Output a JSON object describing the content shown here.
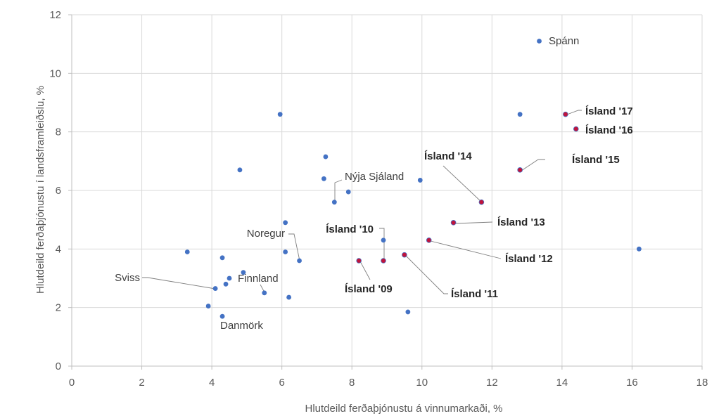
{
  "chart_data": {
    "type": "scatter",
    "xlabel": "Hlutdeild ferðaþjónustu á vinnumarkaði, %",
    "ylabel": "Hlutdeild ferðaþjónustu í landsframleiðslu, %",
    "xlim": [
      0,
      18
    ],
    "ylim": [
      0,
      12
    ],
    "xticks": [
      0,
      2,
      4,
      6,
      8,
      10,
      12,
      14,
      16,
      18
    ],
    "yticks": [
      0,
      2,
      4,
      6,
      8,
      10,
      12
    ],
    "grid": true,
    "colors": {
      "other": "#4472C4",
      "iceland": "#C0143C",
      "grid": "#D9D9D9",
      "axis": "#BFBFBF",
      "leader": "#7F7F7F"
    },
    "points": [
      {
        "x": 13.35,
        "y": 11.1,
        "label": "Spánn",
        "highlight": false
      },
      {
        "x": 5.95,
        "y": 8.6,
        "label": "",
        "highlight": false
      },
      {
        "x": 12.8,
        "y": 8.6,
        "label": "",
        "highlight": false
      },
      {
        "x": 4.8,
        "y": 6.7,
        "label": "",
        "highlight": false
      },
      {
        "x": 7.25,
        "y": 7.15,
        "label": "",
        "highlight": false
      },
      {
        "x": 7.2,
        "y": 6.4,
        "label": "",
        "highlight": false
      },
      {
        "x": 7.9,
        "y": 5.95,
        "label": "",
        "highlight": false
      },
      {
        "x": 7.5,
        "y": 5.6,
        "label": "Nýja Sjáland",
        "highlight": false
      },
      {
        "x": 9.95,
        "y": 6.35,
        "label": "",
        "highlight": false
      },
      {
        "x": 6.1,
        "y": 4.9,
        "label": "",
        "highlight": false
      },
      {
        "x": 6.1,
        "y": 3.9,
        "label": "",
        "highlight": false
      },
      {
        "x": 6.5,
        "y": 3.6,
        "label": "Noregur",
        "highlight": false
      },
      {
        "x": 3.3,
        "y": 3.9,
        "label": "",
        "highlight": false
      },
      {
        "x": 4.3,
        "y": 3.7,
        "label": "",
        "highlight": false
      },
      {
        "x": 4.9,
        "y": 3.2,
        "label": "",
        "highlight": false
      },
      {
        "x": 4.5,
        "y": 3.0,
        "label": "",
        "highlight": false
      },
      {
        "x": 4.4,
        "y": 2.8,
        "label": "",
        "highlight": false
      },
      {
        "x": 4.1,
        "y": 2.65,
        "label": "Sviss",
        "highlight": false
      },
      {
        "x": 5.5,
        "y": 2.5,
        "label": "Finnland",
        "highlight": false
      },
      {
        "x": 6.2,
        "y": 2.35,
        "label": "",
        "highlight": false
      },
      {
        "x": 3.9,
        "y": 2.05,
        "label": "",
        "highlight": false
      },
      {
        "x": 4.3,
        "y": 1.7,
        "label": "Danmörk",
        "highlight": false
      },
      {
        "x": 8.9,
        "y": 4.3,
        "label": "",
        "highlight": false
      },
      {
        "x": 9.6,
        "y": 1.85,
        "label": "",
        "highlight": false
      },
      {
        "x": 16.2,
        "y": 4.0,
        "label": "",
        "highlight": false
      },
      {
        "x": 8.2,
        "y": 3.6,
        "label": "Ísland '09",
        "highlight": true
      },
      {
        "x": 8.9,
        "y": 3.6,
        "label": "Ísland '10",
        "highlight": true
      },
      {
        "x": 9.5,
        "y": 3.8,
        "label": "Ísland '11",
        "highlight": true
      },
      {
        "x": 10.2,
        "y": 4.3,
        "label": "Ísland '12",
        "highlight": true
      },
      {
        "x": 10.9,
        "y": 4.9,
        "label": "Ísland '13",
        "highlight": true
      },
      {
        "x": 11.7,
        "y": 5.6,
        "label": "Ísland '14",
        "highlight": true
      },
      {
        "x": 12.8,
        "y": 6.7,
        "label": "Ísland '15",
        "highlight": true
      },
      {
        "x": 14.4,
        "y": 8.1,
        "label": "Ísland '16",
        "highlight": true
      },
      {
        "x": 14.1,
        "y": 8.6,
        "label": "Ísland '17",
        "highlight": true
      }
    ]
  }
}
